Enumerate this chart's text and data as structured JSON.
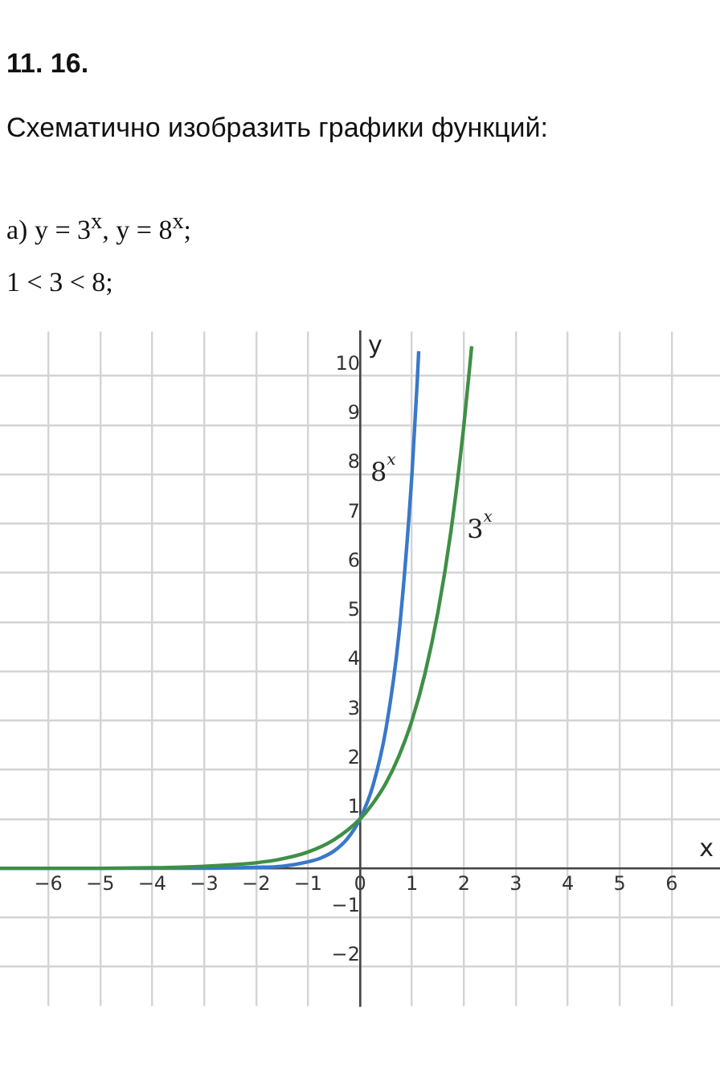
{
  "chart_data": {
    "type": "line",
    "title": "11. 16.",
    "subtitle": "Схематично изобразить графики функций:",
    "annotations": [
      "а) y = 3$^{x}$,  y = 8$^{x}$;",
      "1 < 3 < 8;"
    ],
    "xlabel": "x",
    "ylabel": "y",
    "xlim": [
      -6.93,
      6.93
    ],
    "ylim": [
      -2.8,
      10.9
    ],
    "xticks": [
      -6,
      -5,
      -4,
      -3,
      -2,
      -1,
      0,
      1,
      2,
      3,
      4,
      5,
      6
    ],
    "yticks": [
      -2,
      -1,
      1,
      2,
      3,
      4,
      5,
      6,
      7,
      8,
      9,
      10
    ],
    "grid": true,
    "legend": false,
    "marker": "none",
    "line_style": "solid",
    "series": [
      {
        "name": "3$^{x}$",
        "color": "#3f8f46",
        "x": [
          -6.93,
          -6,
          -5,
          -4,
          -3,
          -2,
          -1.5,
          -1,
          -0.5,
          0,
          0.25,
          0.5,
          0.75,
          1,
          1.25,
          1.5,
          1.75,
          2,
          2.15
        ],
        "values": [
          0,
          0,
          0,
          0.01,
          0.04,
          0.11,
          0.19,
          0.33,
          0.58,
          1,
          1.32,
          1.73,
          2.28,
          3,
          3.95,
          5.2,
          6.84,
          9,
          10.6
        ]
      },
      {
        "name": "8$^{x}$",
        "color": "#3a78c8",
        "x": [
          -6.93,
          -5,
          -3,
          -2,
          -1.5,
          -1,
          -0.75,
          -0.5,
          -0.25,
          0,
          0.25,
          0.5,
          0.75,
          1,
          1.1,
          1.13
        ],
        "values": [
          0,
          0,
          0,
          0.02,
          0.04,
          0.13,
          0.21,
          0.35,
          0.59,
          1,
          1.68,
          2.83,
          4.76,
          8,
          9.85,
          10.5
        ]
      }
    ]
  }
}
